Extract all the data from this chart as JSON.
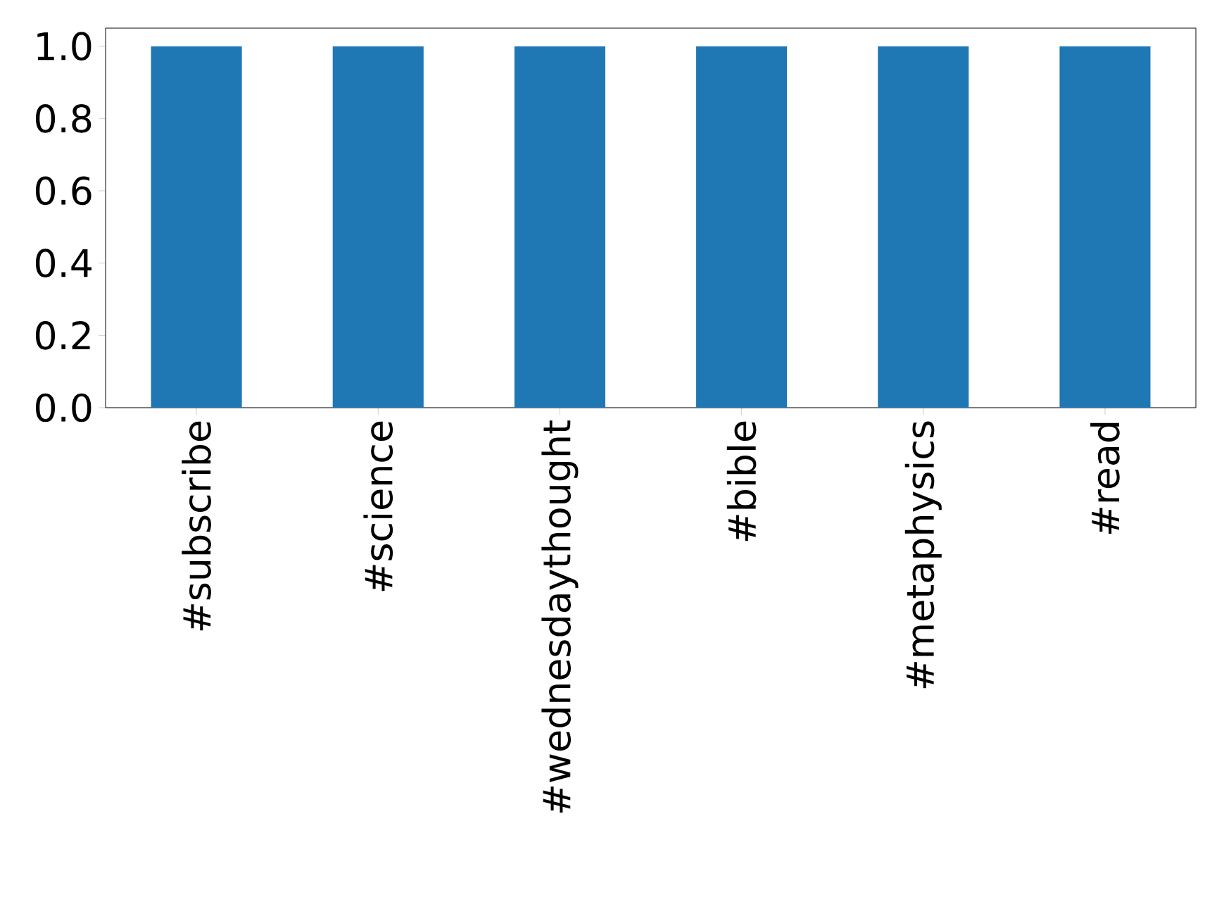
{
  "chart_data": {
    "type": "bar",
    "categories": [
      "#subscribe",
      "#science",
      "#wednesdaythought",
      "#bible",
      "#metaphysics",
      "#read"
    ],
    "values": [
      1.0,
      1.0,
      1.0,
      1.0,
      1.0,
      1.0
    ],
    "color": "#1f77b4",
    "ylim": [
      0,
      1.05
    ],
    "yticks": [
      {
        "value": 0,
        "label": "0.0"
      },
      0.2,
      0.4,
      0.6,
      0.8,
      {
        "value": 1,
        "label": "1.0"
      }
    ]
  }
}
